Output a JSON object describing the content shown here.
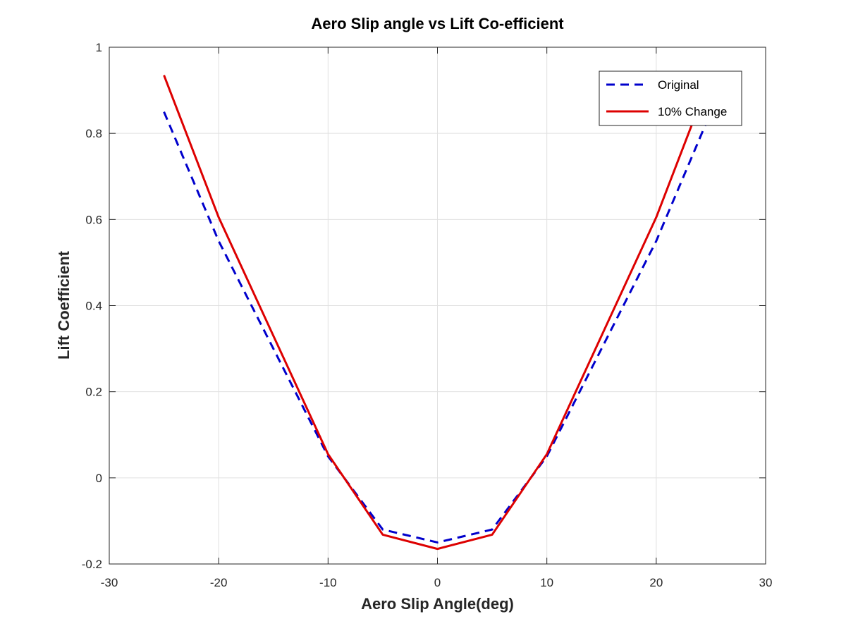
{
  "chart_data": {
    "type": "line",
    "title": "Aero Slip angle vs Lift Co-efficient",
    "xlabel": "Aero Slip Angle(deg)",
    "ylabel": "Lift Coefficient",
    "xlim": [
      -30,
      30
    ],
    "ylim": [
      -0.2,
      1
    ],
    "xticks": [
      -30,
      -20,
      -10,
      0,
      10,
      20,
      30
    ],
    "yticks": [
      -0.2,
      0,
      0.2,
      0.4,
      0.6,
      0.8,
      1
    ],
    "xtick_labels": [
      "-30",
      "-20",
      "-10",
      "0",
      "10",
      "20",
      "30"
    ],
    "ytick_labels": [
      "-0.2",
      "0",
      "0.2",
      "0.4",
      "0.6",
      "0.8",
      "1"
    ],
    "grid": true,
    "legend_position": "top-right",
    "x": [
      -25,
      -20,
      -10,
      -5,
      0,
      5,
      10,
      20,
      25
    ],
    "series": [
      {
        "name": "Original",
        "values": [
          0.85,
          0.55,
          0.05,
          -0.12,
          -0.15,
          -0.12,
          0.05,
          0.55,
          0.85
        ],
        "color": "#0000cc",
        "style": "dashed"
      },
      {
        "name": "10% Change",
        "values": [
          0.935,
          0.605,
          0.055,
          -0.132,
          -0.165,
          -0.132,
          0.055,
          0.605,
          0.935
        ],
        "color": "#dd0000",
        "style": "solid"
      }
    ]
  }
}
